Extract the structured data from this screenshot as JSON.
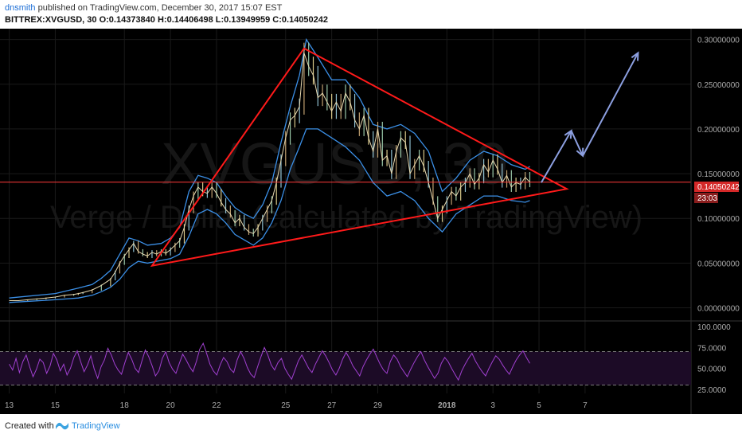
{
  "header": {
    "author": "dnsmith",
    "published_text": "published on TradingView.com, December 30, 2017 15:07 EST",
    "symbol_line": "BITTREX:XVGUSD, 30  O:0.14373840  H:0.14406498  L:0.13949959  C:0.14050242"
  },
  "watermark": {
    "symbol": "XVGUSD, 30",
    "description": "Verge / Dollar (calculated by TradingView)"
  },
  "footer": {
    "created_with": "Created with",
    "brand": "TradingView"
  },
  "chart_data": {
    "type": "line",
    "symbol": "BITTREX:XVGUSD",
    "interval": "30",
    "price_axis": {
      "ticks": [
        "0.30000000",
        "0.25000000",
        "0.20000000",
        "0.15000000",
        "0.10000000",
        "0.05000000",
        "0.00000000"
      ],
      "ylim": [
        -0.012,
        0.305
      ]
    },
    "time_axis": {
      "ticks": [
        "13",
        "15",
        "18",
        "20",
        "22",
        "25",
        "27",
        "29",
        "2018",
        "3",
        "5",
        "7"
      ]
    },
    "last_price": "0.14050242",
    "countdown": "23:03",
    "colors": {
      "background": "#000000",
      "price_line": "#ff3b3b",
      "bands": "#3b8fe6",
      "triangle": "#ff1a1a",
      "arrow": "#8c9fe0",
      "rsi": "#a040d0",
      "rsi_fill": "#1c0b26",
      "axis_text": "#aaaaaa",
      "grid": "#1a1a1a"
    },
    "annotations": [
      {
        "type": "triangle",
        "color": "#ff1a1a"
      },
      {
        "type": "projection-arrow",
        "color": "#8c9fe0"
      }
    ],
    "series": [
      {
        "key": "price",
        "points": [
          [
            0.0,
            0.008
          ],
          [
            0.4,
            0.008
          ],
          [
            0.8,
            0.009
          ],
          [
            1.2,
            0.01
          ],
          [
            1.6,
            0.011
          ],
          [
            2.0,
            0.012
          ],
          [
            2.4,
            0.014
          ],
          [
            2.8,
            0.015
          ],
          [
            3.0,
            0.016
          ],
          [
            3.2,
            0.017
          ],
          [
            3.6,
            0.02
          ],
          [
            4.0,
            0.025
          ],
          [
            4.4,
            0.032
          ],
          [
            4.6,
            0.04
          ],
          [
            4.8,
            0.05
          ],
          [
            5.0,
            0.058
          ],
          [
            5.2,
            0.065
          ],
          [
            5.4,
            0.072
          ],
          [
            5.6,
            0.063
          ],
          [
            5.8,
            0.06
          ],
          [
            6.0,
            0.058
          ],
          [
            6.2,
            0.062
          ],
          [
            6.4,
            0.06
          ],
          [
            6.6,
            0.063
          ],
          [
            6.8,
            0.061
          ],
          [
            7.0,
            0.065
          ],
          [
            7.2,
            0.07
          ],
          [
            7.4,
            0.075
          ],
          [
            7.6,
            0.09
          ],
          [
            7.8,
            0.11
          ],
          [
            8.0,
            0.125
          ],
          [
            8.2,
            0.135
          ],
          [
            8.4,
            0.13
          ],
          [
            8.6,
            0.128
          ],
          [
            8.8,
            0.135
          ],
          [
            9.0,
            0.128
          ],
          [
            9.2,
            0.118
          ],
          [
            9.4,
            0.11
          ],
          [
            9.6,
            0.105
          ],
          [
            9.8,
            0.095
          ],
          [
            10.0,
            0.1
          ],
          [
            10.2,
            0.09
          ],
          [
            10.4,
            0.085
          ],
          [
            10.6,
            0.083
          ],
          [
            10.8,
            0.09
          ],
          [
            11.0,
            0.1
          ],
          [
            11.2,
            0.11
          ],
          [
            11.4,
            0.12
          ],
          [
            11.6,
            0.14
          ],
          [
            11.8,
            0.165
          ],
          [
            12.0,
            0.19
          ],
          [
            12.2,
            0.21
          ],
          [
            12.4,
            0.215
          ],
          [
            12.6,
            0.225
          ],
          [
            12.8,
            0.285
          ],
          [
            13.0,
            0.27
          ],
          [
            13.2,
            0.26
          ],
          [
            13.4,
            0.235
          ],
          [
            13.6,
            0.24
          ],
          [
            13.8,
            0.23
          ],
          [
            14.0,
            0.22
          ],
          [
            14.2,
            0.23
          ],
          [
            14.4,
            0.22
          ],
          [
            14.6,
            0.24
          ],
          [
            14.8,
            0.23
          ],
          [
            15.0,
            0.21
          ],
          [
            15.2,
            0.2
          ],
          [
            15.4,
            0.215
          ],
          [
            15.6,
            0.19
          ],
          [
            15.8,
            0.175
          ],
          [
            16.0,
            0.2
          ],
          [
            16.2,
            0.165
          ],
          [
            16.4,
            0.17
          ],
          [
            16.6,
            0.15
          ],
          [
            16.8,
            0.175
          ],
          [
            17.0,
            0.19
          ],
          [
            17.2,
            0.185
          ],
          [
            17.4,
            0.15
          ],
          [
            17.6,
            0.16
          ],
          [
            17.8,
            0.17
          ],
          [
            18.0,
            0.158
          ],
          [
            18.2,
            0.14
          ],
          [
            18.4,
            0.12
          ],
          [
            18.6,
            0.1
          ],
          [
            18.8,
            0.11
          ],
          [
            19.0,
            0.12
          ],
          [
            19.2,
            0.13
          ],
          [
            19.4,
            0.125
          ],
          [
            19.6,
            0.135
          ],
          [
            19.8,
            0.14
          ],
          [
            20.0,
            0.15
          ],
          [
            20.2,
            0.138
          ],
          [
            20.4,
            0.145
          ],
          [
            20.6,
            0.16
          ],
          [
            20.8,
            0.152
          ],
          [
            21.0,
            0.165
          ],
          [
            21.2,
            0.155
          ],
          [
            21.4,
            0.14
          ],
          [
            21.6,
            0.148
          ],
          [
            21.8,
            0.135
          ],
          [
            22.0,
            0.14
          ],
          [
            22.2,
            0.138
          ],
          [
            22.4,
            0.146
          ],
          [
            22.6,
            0.1405
          ]
        ]
      },
      {
        "key": "upper-band",
        "points": [
          [
            0.0,
            0.011
          ],
          [
            2.0,
            0.016
          ],
          [
            3.0,
            0.022
          ],
          [
            3.6,
            0.026
          ],
          [
            4.0,
            0.033
          ],
          [
            4.4,
            0.042
          ],
          [
            4.8,
            0.06
          ],
          [
            5.2,
            0.078
          ],
          [
            5.6,
            0.075
          ],
          [
            6.0,
            0.07
          ],
          [
            6.6,
            0.072
          ],
          [
            7.0,
            0.078
          ],
          [
            7.4,
            0.09
          ],
          [
            7.8,
            0.13
          ],
          [
            8.2,
            0.148
          ],
          [
            8.6,
            0.145
          ],
          [
            9.0,
            0.14
          ],
          [
            9.4,
            0.125
          ],
          [
            9.8,
            0.112
          ],
          [
            10.2,
            0.105
          ],
          [
            10.6,
            0.1
          ],
          [
            11.0,
            0.115
          ],
          [
            11.4,
            0.14
          ],
          [
            11.8,
            0.185
          ],
          [
            12.2,
            0.225
          ],
          [
            12.6,
            0.26
          ],
          [
            12.9,
            0.3
          ],
          [
            13.4,
            0.28
          ],
          [
            14.0,
            0.255
          ],
          [
            14.6,
            0.255
          ],
          [
            15.2,
            0.235
          ],
          [
            15.8,
            0.205
          ],
          [
            16.4,
            0.2
          ],
          [
            17.0,
            0.205
          ],
          [
            17.6,
            0.195
          ],
          [
            18.2,
            0.175
          ],
          [
            18.8,
            0.13
          ],
          [
            19.4,
            0.145
          ],
          [
            20.0,
            0.165
          ],
          [
            20.6,
            0.175
          ],
          [
            21.2,
            0.17
          ],
          [
            21.8,
            0.16
          ],
          [
            22.4,
            0.155
          ],
          [
            22.6,
            0.158
          ]
        ]
      },
      {
        "key": "lower-band",
        "points": [
          [
            0.0,
            0.006
          ],
          [
            2.0,
            0.009
          ],
          [
            3.0,
            0.011
          ],
          [
            3.6,
            0.014
          ],
          [
            4.0,
            0.018
          ],
          [
            4.4,
            0.023
          ],
          [
            4.8,
            0.032
          ],
          [
            5.2,
            0.045
          ],
          [
            5.6,
            0.052
          ],
          [
            6.0,
            0.05
          ],
          [
            6.6,
            0.053
          ],
          [
            7.0,
            0.055
          ],
          [
            7.4,
            0.06
          ],
          [
            7.8,
            0.08
          ],
          [
            8.2,
            0.105
          ],
          [
            8.6,
            0.11
          ],
          [
            9.0,
            0.105
          ],
          [
            9.4,
            0.095
          ],
          [
            9.8,
            0.082
          ],
          [
            10.2,
            0.076
          ],
          [
            10.6,
            0.07
          ],
          [
            11.0,
            0.078
          ],
          [
            11.4,
            0.095
          ],
          [
            11.8,
            0.12
          ],
          [
            12.2,
            0.155
          ],
          [
            12.6,
            0.18
          ],
          [
            12.9,
            0.2
          ],
          [
            13.4,
            0.2
          ],
          [
            14.0,
            0.19
          ],
          [
            14.6,
            0.18
          ],
          [
            15.2,
            0.165
          ],
          [
            15.8,
            0.14
          ],
          [
            16.4,
            0.125
          ],
          [
            17.0,
            0.13
          ],
          [
            17.6,
            0.12
          ],
          [
            18.2,
            0.1
          ],
          [
            18.8,
            0.085
          ],
          [
            19.4,
            0.105
          ],
          [
            20.0,
            0.115
          ],
          [
            20.6,
            0.125
          ],
          [
            21.2,
            0.125
          ],
          [
            21.8,
            0.12
          ],
          [
            22.4,
            0.118
          ],
          [
            22.6,
            0.12
          ]
        ]
      }
    ],
    "triangle_points": [
      [
        6.2,
        0.047
      ],
      [
        12.8,
        0.29
      ],
      [
        24.2,
        0.133
      ]
    ],
    "arrow_points": [
      [
        23.1,
        0.14
      ],
      [
        24.4,
        0.198
      ],
      [
        24.9,
        0.17
      ],
      [
        27.3,
        0.285
      ]
    ],
    "rsi": {
      "ticks": [
        "100.0000",
        "75.0000",
        "50.0000",
        "25.0000"
      ],
      "ylim": [
        20,
        102
      ],
      "levels": [
        30,
        70
      ],
      "values": [
        55,
        48,
        62,
        45,
        58,
        66,
        52,
        40,
        49,
        61,
        57,
        44,
        53,
        68,
        60,
        47,
        55,
        42,
        50,
        63,
        71,
        58,
        46,
        54,
        65,
        49,
        38,
        52,
        60,
        74,
        66,
        55,
        48,
        43,
        57,
        69,
        61,
        50,
        45,
        59,
        72,
        64,
        53,
        41,
        47,
        62,
        70,
        57,
        49,
        44,
        56,
        67,
        60,
        52,
        46,
        58,
        73,
        80,
        68,
        55,
        47,
        42,
        54,
        63,
        58,
        49,
        45,
        60,
        70,
        62,
        51,
        43,
        39,
        52,
        64,
        75,
        66,
        54,
        48,
        57,
        62,
        50,
        43,
        37,
        48,
        59,
        66,
        58,
        50,
        45,
        55,
        63,
        71,
        65,
        57,
        48,
        42,
        50,
        61,
        69,
        62,
        53,
        47,
        41,
        52,
        60,
        67,
        73,
        64,
        55,
        48,
        44,
        58,
        66,
        61,
        52,
        46,
        40,
        49,
        57,
        64,
        70,
        60,
        52,
        45,
        38,
        44,
        56,
        63,
        58,
        50,
        43,
        36,
        47,
        55,
        62,
        68,
        59,
        52,
        46,
        41,
        50,
        58,
        65,
        61,
        54,
        48,
        43,
        52,
        60,
        66,
        71,
        63,
        56
      ]
    }
  }
}
